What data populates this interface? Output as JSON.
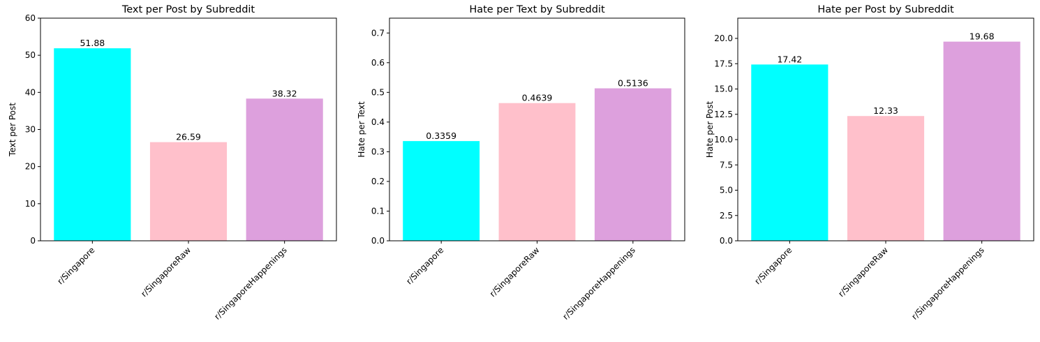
{
  "chart_data": [
    {
      "type": "bar",
      "title": "Text per Post by Subreddit",
      "xlabel": "",
      "ylabel": "Text per Post",
      "categories": [
        "r/Singapore",
        "r/SingaporeRaw",
        "r/SingaporeHappenings"
      ],
      "values": [
        51.88,
        26.59,
        38.32
      ],
      "value_labels": [
        "51.88",
        "26.59",
        "38.32"
      ],
      "colors": [
        "#00ffff",
        "#ffc0cb",
        "#dda0dd"
      ],
      "ylim": [
        0,
        60
      ],
      "yticks": [
        0,
        10,
        20,
        30,
        40,
        50,
        60
      ],
      "ytick_labels": [
        "0",
        "10",
        "20",
        "30",
        "40",
        "50",
        "60"
      ],
      "grid": false,
      "legend": "none"
    },
    {
      "type": "bar",
      "title": "Hate per Text by Subreddit",
      "xlabel": "",
      "ylabel": "Hate per Text",
      "categories": [
        "r/Singapore",
        "r/SingaporeRaw",
        "r/SingaporeHappenings"
      ],
      "values": [
        0.3359,
        0.4639,
        0.5136
      ],
      "value_labels": [
        "0.3359",
        "0.4639",
        "0.5136"
      ],
      "colors": [
        "#00ffff",
        "#ffc0cb",
        "#dda0dd"
      ],
      "ylim": [
        0,
        0.75
      ],
      "yticks": [
        0,
        0.1,
        0.2,
        0.3,
        0.4,
        0.5,
        0.6,
        0.7
      ],
      "ytick_labels": [
        "0.0",
        "0.1",
        "0.2",
        "0.3",
        "0.4",
        "0.5",
        "0.6",
        "0.7"
      ],
      "grid": false,
      "legend": "none"
    },
    {
      "type": "bar",
      "title": "Hate per Post by Subreddit",
      "xlabel": "",
      "ylabel": "Hate per Post",
      "categories": [
        "r/Singapore",
        "r/SingaporeRaw",
        "r/SingaporeHappenings"
      ],
      "values": [
        17.42,
        12.33,
        19.68
      ],
      "value_labels": [
        "17.42",
        "12.33",
        "19.68"
      ],
      "colors": [
        "#00ffff",
        "#ffc0cb",
        "#dda0dd"
      ],
      "ylim": [
        0,
        22
      ],
      "yticks": [
        0,
        2.5,
        5,
        7.5,
        10,
        12.5,
        15,
        17.5,
        20
      ],
      "ytick_labels": [
        "0.0",
        "2.5",
        "5.0",
        "7.5",
        "10.0",
        "12.5",
        "15.0",
        "17.5",
        "20.0"
      ],
      "grid": false,
      "legend": "none"
    }
  ]
}
